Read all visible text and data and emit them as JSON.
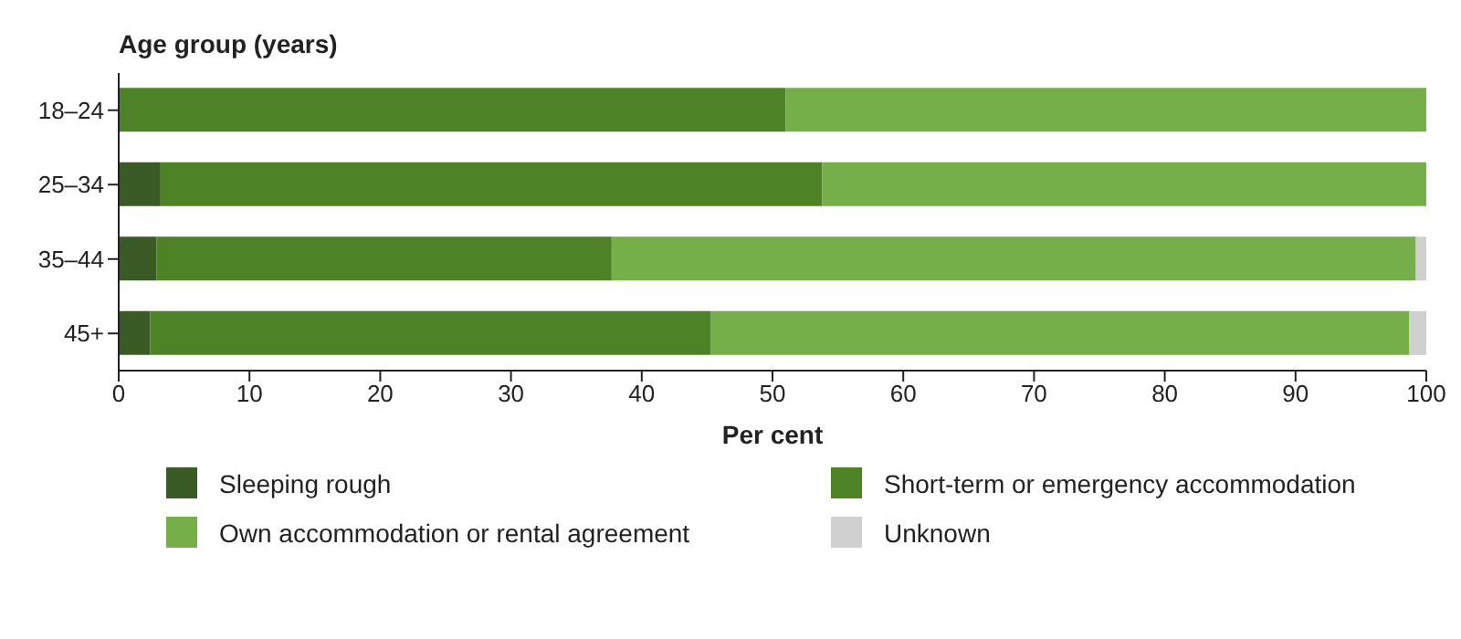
{
  "chart_data": {
    "type": "bar",
    "orientation": "horizontal",
    "stacked": true,
    "ylabel": "Age group (years)",
    "xlabel": "Per cent",
    "categories": [
      "18–24",
      "25–34",
      "35–44",
      "45+"
    ],
    "series": [
      {
        "name": "Sleeping rough",
        "color": "#3a5a26",
        "values": [
          0,
          3.2,
          2.9,
          2.4
        ]
      },
      {
        "name": "Short-term or emergency accommodation",
        "color": "#4e8226",
        "values": [
          51.0,
          50.6,
          34.8,
          42.9
        ]
      },
      {
        "name": "Own accommodation or rental agreement",
        "color": "#76ae4a",
        "values": [
          49.0,
          46.2,
          61.5,
          53.4
        ]
      },
      {
        "name": "Unknown",
        "color": "#d0d0d0",
        "values": [
          0,
          0,
          0.8,
          1.3
        ]
      }
    ],
    "xlim": [
      0,
      100
    ],
    "xticks": [
      0,
      10,
      20,
      30,
      40,
      50,
      60,
      70,
      80,
      90,
      100
    ],
    "grid": false,
    "legend": "bottom"
  }
}
